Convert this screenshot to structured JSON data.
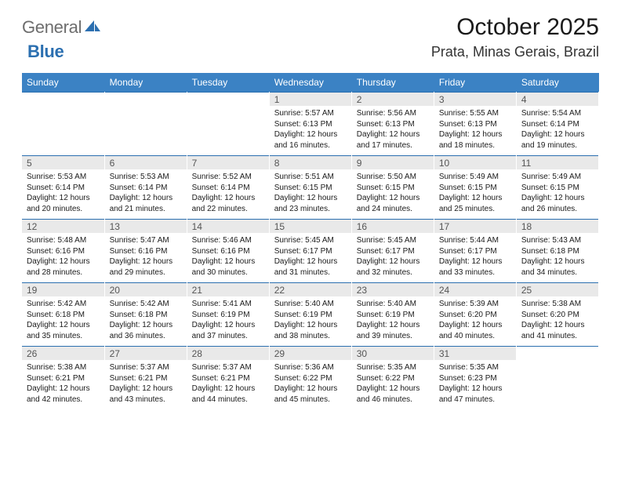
{
  "logo": {
    "gray": "General",
    "blue": "Blue"
  },
  "title": "October 2025",
  "location": "Prata, Minas Gerais, Brazil",
  "colors": {
    "header_bg": "#3b82c4",
    "header_text": "#ffffff",
    "daynum_bg": "#e9e9e9",
    "daynum_text": "#555555",
    "border": "#2b6fb0",
    "body_text": "#1a1a1a",
    "logo_gray": "#6d6d6d",
    "logo_blue": "#2b6fb0",
    "background": "#ffffff"
  },
  "weekdays": [
    "Sunday",
    "Monday",
    "Tuesday",
    "Wednesday",
    "Thursday",
    "Friday",
    "Saturday"
  ],
  "weeks": [
    [
      {
        "day": "",
        "sunrise": "",
        "sunset": "",
        "daylight": ""
      },
      {
        "day": "",
        "sunrise": "",
        "sunset": "",
        "daylight": ""
      },
      {
        "day": "",
        "sunrise": "",
        "sunset": "",
        "daylight": ""
      },
      {
        "day": "1",
        "sunrise": "Sunrise: 5:57 AM",
        "sunset": "Sunset: 6:13 PM",
        "daylight": "Daylight: 12 hours and 16 minutes."
      },
      {
        "day": "2",
        "sunrise": "Sunrise: 5:56 AM",
        "sunset": "Sunset: 6:13 PM",
        "daylight": "Daylight: 12 hours and 17 minutes."
      },
      {
        "day": "3",
        "sunrise": "Sunrise: 5:55 AM",
        "sunset": "Sunset: 6:13 PM",
        "daylight": "Daylight: 12 hours and 18 minutes."
      },
      {
        "day": "4",
        "sunrise": "Sunrise: 5:54 AM",
        "sunset": "Sunset: 6:14 PM",
        "daylight": "Daylight: 12 hours and 19 minutes."
      }
    ],
    [
      {
        "day": "5",
        "sunrise": "Sunrise: 5:53 AM",
        "sunset": "Sunset: 6:14 PM",
        "daylight": "Daylight: 12 hours and 20 minutes."
      },
      {
        "day": "6",
        "sunrise": "Sunrise: 5:53 AM",
        "sunset": "Sunset: 6:14 PM",
        "daylight": "Daylight: 12 hours and 21 minutes."
      },
      {
        "day": "7",
        "sunrise": "Sunrise: 5:52 AM",
        "sunset": "Sunset: 6:14 PM",
        "daylight": "Daylight: 12 hours and 22 minutes."
      },
      {
        "day": "8",
        "sunrise": "Sunrise: 5:51 AM",
        "sunset": "Sunset: 6:15 PM",
        "daylight": "Daylight: 12 hours and 23 minutes."
      },
      {
        "day": "9",
        "sunrise": "Sunrise: 5:50 AM",
        "sunset": "Sunset: 6:15 PM",
        "daylight": "Daylight: 12 hours and 24 minutes."
      },
      {
        "day": "10",
        "sunrise": "Sunrise: 5:49 AM",
        "sunset": "Sunset: 6:15 PM",
        "daylight": "Daylight: 12 hours and 25 minutes."
      },
      {
        "day": "11",
        "sunrise": "Sunrise: 5:49 AM",
        "sunset": "Sunset: 6:15 PM",
        "daylight": "Daylight: 12 hours and 26 minutes."
      }
    ],
    [
      {
        "day": "12",
        "sunrise": "Sunrise: 5:48 AM",
        "sunset": "Sunset: 6:16 PM",
        "daylight": "Daylight: 12 hours and 28 minutes."
      },
      {
        "day": "13",
        "sunrise": "Sunrise: 5:47 AM",
        "sunset": "Sunset: 6:16 PM",
        "daylight": "Daylight: 12 hours and 29 minutes."
      },
      {
        "day": "14",
        "sunrise": "Sunrise: 5:46 AM",
        "sunset": "Sunset: 6:16 PM",
        "daylight": "Daylight: 12 hours and 30 minutes."
      },
      {
        "day": "15",
        "sunrise": "Sunrise: 5:45 AM",
        "sunset": "Sunset: 6:17 PM",
        "daylight": "Daylight: 12 hours and 31 minutes."
      },
      {
        "day": "16",
        "sunrise": "Sunrise: 5:45 AM",
        "sunset": "Sunset: 6:17 PM",
        "daylight": "Daylight: 12 hours and 32 minutes."
      },
      {
        "day": "17",
        "sunrise": "Sunrise: 5:44 AM",
        "sunset": "Sunset: 6:17 PM",
        "daylight": "Daylight: 12 hours and 33 minutes."
      },
      {
        "day": "18",
        "sunrise": "Sunrise: 5:43 AM",
        "sunset": "Sunset: 6:18 PM",
        "daylight": "Daylight: 12 hours and 34 minutes."
      }
    ],
    [
      {
        "day": "19",
        "sunrise": "Sunrise: 5:42 AM",
        "sunset": "Sunset: 6:18 PM",
        "daylight": "Daylight: 12 hours and 35 minutes."
      },
      {
        "day": "20",
        "sunrise": "Sunrise: 5:42 AM",
        "sunset": "Sunset: 6:18 PM",
        "daylight": "Daylight: 12 hours and 36 minutes."
      },
      {
        "day": "21",
        "sunrise": "Sunrise: 5:41 AM",
        "sunset": "Sunset: 6:19 PM",
        "daylight": "Daylight: 12 hours and 37 minutes."
      },
      {
        "day": "22",
        "sunrise": "Sunrise: 5:40 AM",
        "sunset": "Sunset: 6:19 PM",
        "daylight": "Daylight: 12 hours and 38 minutes."
      },
      {
        "day": "23",
        "sunrise": "Sunrise: 5:40 AM",
        "sunset": "Sunset: 6:19 PM",
        "daylight": "Daylight: 12 hours and 39 minutes."
      },
      {
        "day": "24",
        "sunrise": "Sunrise: 5:39 AM",
        "sunset": "Sunset: 6:20 PM",
        "daylight": "Daylight: 12 hours and 40 minutes."
      },
      {
        "day": "25",
        "sunrise": "Sunrise: 5:38 AM",
        "sunset": "Sunset: 6:20 PM",
        "daylight": "Daylight: 12 hours and 41 minutes."
      }
    ],
    [
      {
        "day": "26",
        "sunrise": "Sunrise: 5:38 AM",
        "sunset": "Sunset: 6:21 PM",
        "daylight": "Daylight: 12 hours and 42 minutes."
      },
      {
        "day": "27",
        "sunrise": "Sunrise: 5:37 AM",
        "sunset": "Sunset: 6:21 PM",
        "daylight": "Daylight: 12 hours and 43 minutes."
      },
      {
        "day": "28",
        "sunrise": "Sunrise: 5:37 AM",
        "sunset": "Sunset: 6:21 PM",
        "daylight": "Daylight: 12 hours and 44 minutes."
      },
      {
        "day": "29",
        "sunrise": "Sunrise: 5:36 AM",
        "sunset": "Sunset: 6:22 PM",
        "daylight": "Daylight: 12 hours and 45 minutes."
      },
      {
        "day": "30",
        "sunrise": "Sunrise: 5:35 AM",
        "sunset": "Sunset: 6:22 PM",
        "daylight": "Daylight: 12 hours and 46 minutes."
      },
      {
        "day": "31",
        "sunrise": "Sunrise: 5:35 AM",
        "sunset": "Sunset: 6:23 PM",
        "daylight": "Daylight: 12 hours and 47 minutes."
      },
      {
        "day": "",
        "sunrise": "",
        "sunset": "",
        "daylight": ""
      }
    ]
  ]
}
